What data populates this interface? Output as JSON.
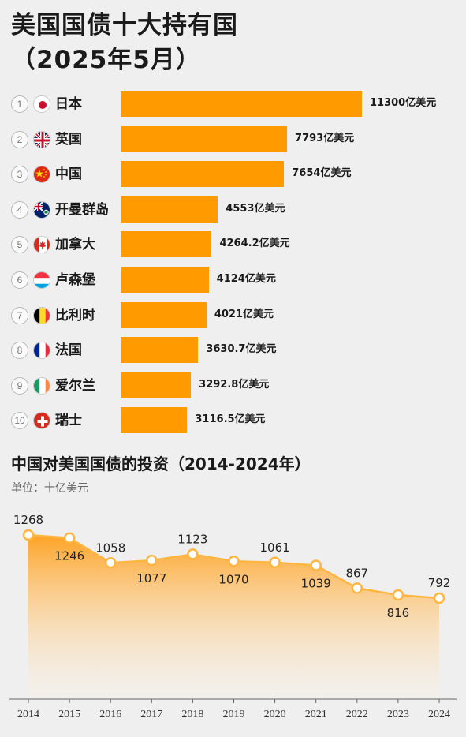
{
  "header": {
    "title": "美国国债十大持有国",
    "subtitle": "（2025年5月）"
  },
  "ranking": {
    "unit_suffix": "亿美元",
    "items": [
      {
        "rank": "1",
        "country": "日本",
        "flag": "japan-flag-icon",
        "value": 11300,
        "label": "11300亿美元"
      },
      {
        "rank": "2",
        "country": "英国",
        "flag": "uk-flag-icon",
        "value": 7793,
        "label": "7793亿美元"
      },
      {
        "rank": "3",
        "country": "中国",
        "flag": "china-flag-icon",
        "value": 7654,
        "label": "7654亿美元"
      },
      {
        "rank": "4",
        "country": "开曼群岛",
        "flag": "cayman-flag-icon",
        "value": 4553,
        "label": "4553亿美元"
      },
      {
        "rank": "5",
        "country": "加拿大",
        "flag": "canada-flag-icon",
        "value": 4264.2,
        "label": "4264.2亿美元"
      },
      {
        "rank": "6",
        "country": "卢森堡",
        "flag": "luxembourg-flag-icon",
        "value": 4124,
        "label": "4124亿美元"
      },
      {
        "rank": "7",
        "country": "比利时",
        "flag": "belgium-flag-icon",
        "value": 4021,
        "label": "4021亿美元"
      },
      {
        "rank": "8",
        "country": "法国",
        "flag": "france-flag-icon",
        "value": 3630.7,
        "label": "3630.7亿美元"
      },
      {
        "rank": "9",
        "country": "爱尔兰",
        "flag": "ireland-flag-icon",
        "value": 3292.8,
        "label": "3292.8亿美元"
      },
      {
        "rank": "10",
        "country": "瑞士",
        "flag": "switzerland-flag-icon",
        "value": 3116.5,
        "label": "3116.5亿美元"
      }
    ]
  },
  "trend": {
    "title": "中国对美国国债的投资（2014-2024年）",
    "unit": "单位：十亿美元"
  },
  "colors": {
    "bar": "#ff9b00",
    "line": "#ffb640",
    "area_top": "#ff9f1a",
    "area_bottom": "#fff3e0",
    "background": "#efefef"
  },
  "chart_data": [
    {
      "type": "bar",
      "title": "美国国债十大持有国",
      "subtitle": "（2025年5月）",
      "categories": [
        "日本",
        "英国",
        "中国",
        "开曼群岛",
        "加拿大",
        "卢森堡",
        "比利时",
        "法国",
        "爱尔兰",
        "瑞士"
      ],
      "values": [
        11300,
        7793,
        7654,
        4553,
        4264.2,
        4124,
        4021,
        3630.7,
        3292.8,
        3116.5
      ],
      "unit": "亿美元",
      "orientation": "horizontal"
    },
    {
      "type": "area",
      "title": "中国对美国国债的投资（2014-2024年）",
      "unit": "单位：十亿美元",
      "x": [
        "2014",
        "2015",
        "2016",
        "2017",
        "2018",
        "2019",
        "2020",
        "2021",
        "2022",
        "2023",
        "2024"
      ],
      "values": [
        1268,
        1246,
        1058,
        1077,
        1123,
        1070,
        1061,
        1039,
        867,
        816,
        792
      ],
      "label_position": [
        "above",
        "below",
        "above",
        "below",
        "above",
        "below",
        "above",
        "below",
        "above",
        "below",
        "above"
      ],
      "grid": false
    }
  ]
}
